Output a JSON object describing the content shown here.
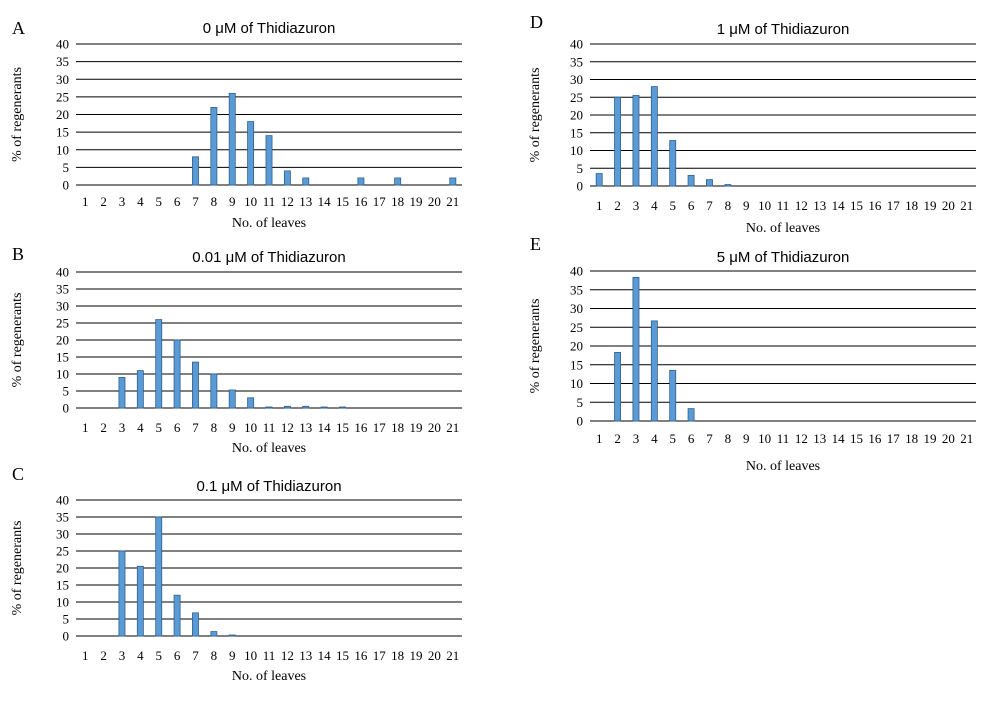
{
  "chart_data": [
    {
      "panel": "A",
      "type": "bar",
      "title": "0 μM of Thidiazuron",
      "xlabel": "No. of leaves",
      "ylabel": "% of regenerants",
      "ylim": [
        0,
        40
      ],
      "yticks": [
        0,
        5,
        10,
        15,
        20,
        25,
        30,
        35,
        40
      ],
      "grid": true,
      "categories": [
        "1",
        "2",
        "3",
        "4",
        "5",
        "6",
        "7",
        "8",
        "9",
        "10",
        "11",
        "12",
        "13",
        "14",
        "15",
        "16",
        "17",
        "18",
        "19",
        "20",
        "21"
      ],
      "values": [
        0,
        0,
        0,
        0,
        0,
        0,
        8,
        22,
        26,
        18,
        14,
        4,
        2,
        0,
        0,
        2,
        0,
        2,
        0,
        0,
        2
      ]
    },
    {
      "panel": "B",
      "type": "bar",
      "title": "0.01 μM of Thidiazuron",
      "xlabel": "No. of leaves",
      "ylabel": "% of regenerants",
      "ylim": [
        0,
        40
      ],
      "yticks": [
        0,
        5,
        10,
        15,
        20,
        25,
        30,
        35,
        40
      ],
      "grid": true,
      "categories": [
        "1",
        "2",
        "3",
        "4",
        "5",
        "6",
        "7",
        "8",
        "9",
        "10",
        "11",
        "12",
        "13",
        "14",
        "15",
        "16",
        "17",
        "18",
        "19",
        "20",
        "21"
      ],
      "values": [
        0,
        0,
        9,
        11,
        26,
        20,
        13.5,
        10,
        5.3,
        3,
        0.3,
        0.5,
        0.5,
        0.3,
        0.3,
        0,
        0,
        0,
        0,
        0,
        0
      ]
    },
    {
      "panel": "C",
      "type": "bar",
      "title": "0.1 μM of Thidiazuron",
      "xlabel": "No. of leaves",
      "ylabel": "% of regenerants",
      "ylim": [
        0,
        40
      ],
      "yticks": [
        0,
        5,
        10,
        15,
        20,
        25,
        30,
        35,
        40
      ],
      "grid": true,
      "categories": [
        "1",
        "2",
        "3",
        "4",
        "5",
        "6",
        "7",
        "8",
        "9",
        "10",
        "11",
        "12",
        "13",
        "14",
        "15",
        "16",
        "17",
        "18",
        "19",
        "20",
        "21"
      ],
      "values": [
        0,
        0,
        25,
        20.5,
        35,
        12,
        6.8,
        1.3,
        0.3,
        0,
        0,
        0,
        0,
        0,
        0,
        0,
        0,
        0,
        0,
        0,
        0
      ]
    },
    {
      "panel": "D",
      "type": "bar",
      "title": "1 μM of Thidiazuron",
      "xlabel": "No. of leaves",
      "ylabel": "% of regenerants",
      "ylim": [
        0,
        40
      ],
      "yticks": [
        0,
        5,
        10,
        15,
        20,
        25,
        30,
        35,
        40
      ],
      "grid": true,
      "categories": [
        "1",
        "2",
        "3",
        "4",
        "5",
        "6",
        "7",
        "8",
        "9",
        "10",
        "11",
        "12",
        "13",
        "14",
        "15",
        "16",
        "17",
        "18",
        "19",
        "20",
        "21"
      ],
      "values": [
        3.5,
        25,
        25.5,
        28,
        12.8,
        3,
        1.8,
        0.4,
        0,
        0,
        0,
        0,
        0,
        0,
        0,
        0,
        0,
        0,
        0,
        0,
        0
      ]
    },
    {
      "panel": "E",
      "type": "bar",
      "title": "5 μM of Thidiazuron",
      "xlabel": "No. of leaves",
      "ylabel": "% of regenerants",
      "ylim": [
        0,
        40
      ],
      "yticks": [
        0,
        5,
        10,
        15,
        20,
        25,
        30,
        35,
        40
      ],
      "grid": true,
      "categories": [
        "1",
        "2",
        "3",
        "4",
        "5",
        "6",
        "7",
        "8",
        "9",
        "10",
        "11",
        "12",
        "13",
        "14",
        "15",
        "16",
        "17",
        "18",
        "19",
        "20",
        "21"
      ],
      "values": [
        0,
        18.3,
        38.3,
        26.7,
        13.5,
        3.3,
        0,
        0,
        0,
        0,
        0,
        0,
        0,
        0,
        0,
        0,
        0,
        0,
        0,
        0,
        0
      ]
    }
  ]
}
